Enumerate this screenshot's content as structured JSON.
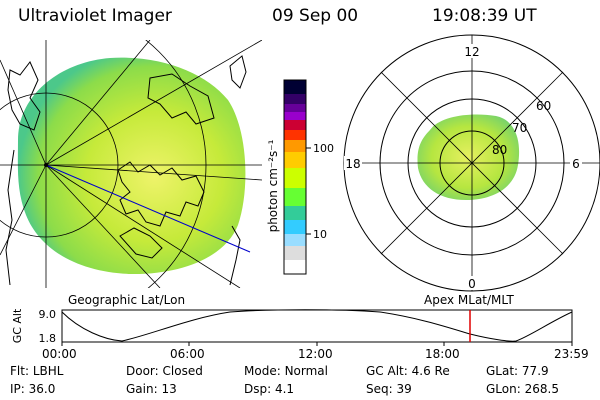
{
  "header": {
    "title": "Ultraviolet Imager",
    "date": "09 Sep 00",
    "time": "19:08:39 UT"
  },
  "left_panel": {
    "label": "Geographic Lat/Lon"
  },
  "right_panel": {
    "label": "Apex MLat/MLT",
    "mlt_labels": {
      "top": "12",
      "right": "6",
      "bottom": "0",
      "left": "18"
    },
    "lat_labels": [
      "60",
      "70",
      "80"
    ]
  },
  "colorbar": {
    "unit_label": "photon cm⁻²s⁻¹",
    "ticks": [
      "100",
      "10"
    ],
    "colors": [
      "#000033",
      "#330066",
      "#660099",
      "#9900cc",
      "#cc0033",
      "#ff3300",
      "#ff9900",
      "#ffcc00",
      "#ccff00",
      "#66ff33",
      "#33cc99",
      "#33ccff",
      "#99ddff",
      "#dddddd",
      "#ffffff"
    ]
  },
  "altitude_plot": {
    "ylabel": "GC Alt",
    "y_top": "9.0",
    "y_bottom": "1.8",
    "x_ticks": [
      "00:00",
      "06:00",
      "12:00",
      "18:00",
      "23:59"
    ],
    "current_time_fraction": 0.8
  },
  "footer": {
    "row1": [
      {
        "label": "Flt:",
        "value": "LBHL"
      },
      {
        "label": "Door:",
        "value": "Closed"
      },
      {
        "label": "Mode:",
        "value": "Normal"
      },
      {
        "label": "GC Alt:",
        "value": "4.6 Re"
      },
      {
        "label": "GLat:",
        "value": "77.9"
      }
    ],
    "row2": [
      {
        "label": "IP:",
        "value": "36.0"
      },
      {
        "label": "Gain:",
        "value": "13"
      },
      {
        "label": "Dsp:",
        "value": "4.1"
      },
      {
        "label": "Seq:",
        "value": "39"
      },
      {
        "label": "GLon:",
        "value": "268.5"
      }
    ]
  }
}
